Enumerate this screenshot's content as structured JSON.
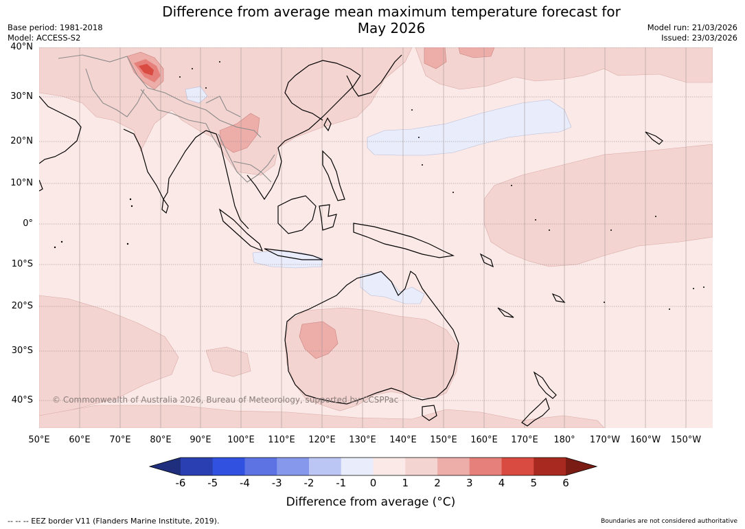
{
  "title": "Difference from average mean maximum temperature forecast for",
  "subtitle": "May 2026",
  "base_period": "Base period: 1981-2018",
  "model": "Model: ACCESS-S2",
  "model_run": "Model run: 21/03/2026",
  "issued": "Issued: 23/03/2026",
  "lat_labels": [
    "40°N",
    "30°N",
    "20°N",
    "10°N",
    "0°",
    "10°S",
    "20°S",
    "30°S",
    "40°S"
  ],
  "lon_labels": [
    "50°E",
    "60°E",
    "70°E",
    "80°E",
    "90°E",
    "100°E",
    "110°E",
    "120°E",
    "130°E",
    "140°E",
    "150°E",
    "160°E",
    "170°E",
    "180°",
    "170°W",
    "160°W",
    "150°W"
  ],
  "copyright": "© Commonwealth of Australia 2026, Bureau of Meteorology, supported by CCSPPac",
  "legend": {
    "ticks": [
      "-6",
      "-5",
      "-4",
      "-3",
      "-2",
      "-1",
      "0",
      "1",
      "2",
      "3",
      "4",
      "5",
      "6"
    ],
    "colors": [
      "#1f2f7e",
      "#2a3fb2",
      "#3152e0",
      "#5d73e4",
      "#8598ec",
      "#bcc6f4",
      "#e9ecfa",
      "#fbe9e7",
      "#f4d4d1",
      "#edaeaa",
      "#e5807a",
      "#d94a40",
      "#a8291f",
      "#7a1b14"
    ],
    "title": "Difference from average ($^\\circ$C)",
    "title_text": "Difference from average (°C)"
  },
  "footer_left": "--  --  -- EEZ border V11 (Flanders Marine Institute, 2019).",
  "footer_right": "Boundaries are not considered authoritative",
  "colors": {
    "anomaly_0_1": "#fbe9e7",
    "anomaly_1_2": "#f4d4d1",
    "anomaly_2_3": "#edaeaa",
    "anomaly_3_4": "#e5807a",
    "anomaly_4_5": "#d94a40",
    "anomaly_neg_0_1": "#e9ecfa",
    "grid": "#9a8f8f",
    "coast": "#000000",
    "border": "#888888"
  }
}
